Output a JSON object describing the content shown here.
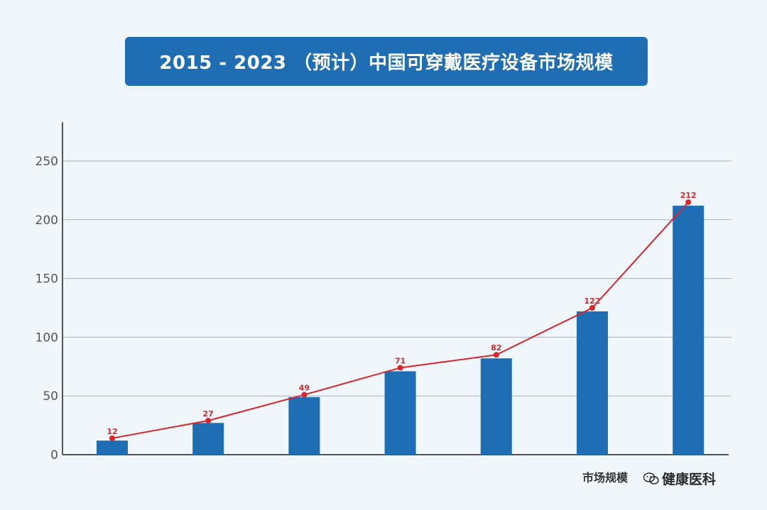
{
  "header": {
    "title": "2015 - 2023 （预计）中国可穿戴医疗设备市场规模"
  },
  "chart_data": {
    "type": "bar",
    "title": "2015 - 2023 （预计）中国可穿戴医疗设备市场规模",
    "xlabel": "",
    "ylabel": "",
    "categories": [
      "",
      "",
      "",
      "",
      "",
      "",
      ""
    ],
    "series": [
      {
        "name": "市场规模",
        "kind": "bar",
        "values": [
          12,
          27,
          49,
          71,
          82,
          122,
          212
        ]
      },
      {
        "name": "",
        "kind": "line",
        "values": [
          14,
          29,
          51,
          74,
          85,
          125,
          215
        ]
      }
    ],
    "data_labels": [
      "12",
      "27",
      "49",
      "71",
      "82",
      "122",
      "212"
    ],
    "yticks": [
      0,
      50,
      100,
      150,
      200,
      250
    ],
    "ylim": [
      0,
      283
    ],
    "grid": true,
    "legend_position": "bottom-right",
    "colors": {
      "bar": "#1f6db3",
      "line": "#d9262a",
      "grid": "#a9b1ba",
      "axis": "#555555",
      "tick_text": "#555555"
    }
  },
  "legend": {
    "label": "市场规模"
  },
  "watermark": {
    "text": "健康医科",
    "icon": "wechat-icon"
  }
}
